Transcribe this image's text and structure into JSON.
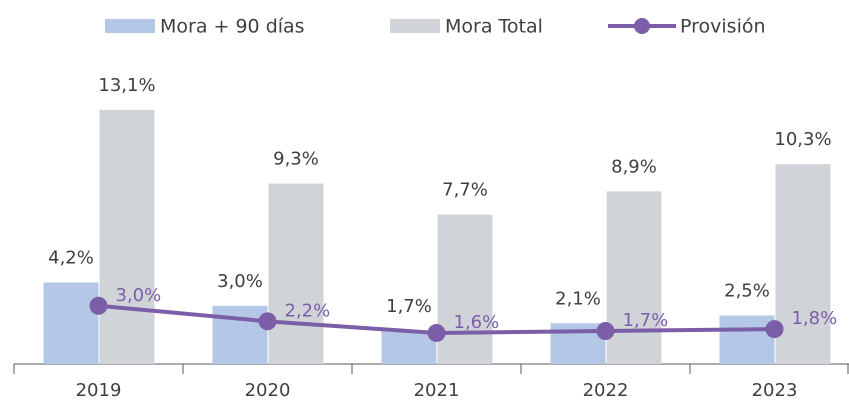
{
  "chart_data": {
    "type": "bar-line",
    "categories": [
      "2019",
      "2020",
      "2021",
      "2022",
      "2023"
    ],
    "series": [
      {
        "name": "Mora + 90 días",
        "type": "bar",
        "color": "#b4c7e7",
        "values": [
          4.2,
          3.0,
          1.7,
          2.1,
          2.5
        ],
        "value_labels": [
          "4,2%",
          "3,0%",
          "1,7%",
          "2,1%",
          "2,5%"
        ]
      },
      {
        "name": "Mora Total",
        "type": "bar",
        "color": "#d0d4d9",
        "values": [
          13.1,
          9.3,
          7.7,
          8.9,
          10.3
        ],
        "value_labels": [
          "13,1%",
          "9,3%",
          "7,7%",
          "8,9%",
          "10,3%"
        ]
      },
      {
        "name": "Provisión",
        "type": "line",
        "color": "#7b5ea7",
        "values": [
          3.0,
          2.2,
          1.6,
          1.7,
          1.8
        ],
        "value_labels": [
          "3,0%",
          "2,2%",
          "1,6%",
          "1,7%",
          "1,8%"
        ]
      }
    ]
  }
}
